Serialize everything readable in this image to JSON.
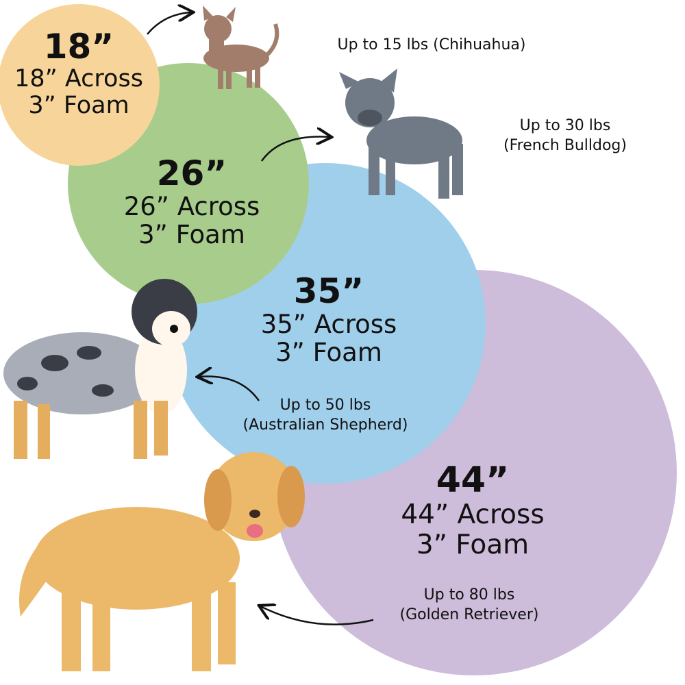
{
  "colors": {
    "small": "#F7D49A",
    "medium": "#A8CC8C",
    "large": "#A0CFEC",
    "xlarge": "#CDBCDA"
  },
  "beds": [
    {
      "size": "18”",
      "across": "18” Across",
      "foam": "3” Foam",
      "weight": "Up to 15 lbs (Chihuahua)",
      "breed": ""
    },
    {
      "size": "26”",
      "across": "26” Across",
      "foam": "3” Foam",
      "weight": "Up to 30 lbs",
      "breed": "(French Bulldog)"
    },
    {
      "size": "35”",
      "across": "35” Across",
      "foam": "3” Foam",
      "weight": "Up to 50 lbs",
      "breed": "(Australian Shepherd)"
    },
    {
      "size": "44”",
      "across": "44” Across",
      "foam": "3” Foam",
      "weight": "Up to 80 lbs",
      "breed": "(Golden Retriever)"
    }
  ]
}
